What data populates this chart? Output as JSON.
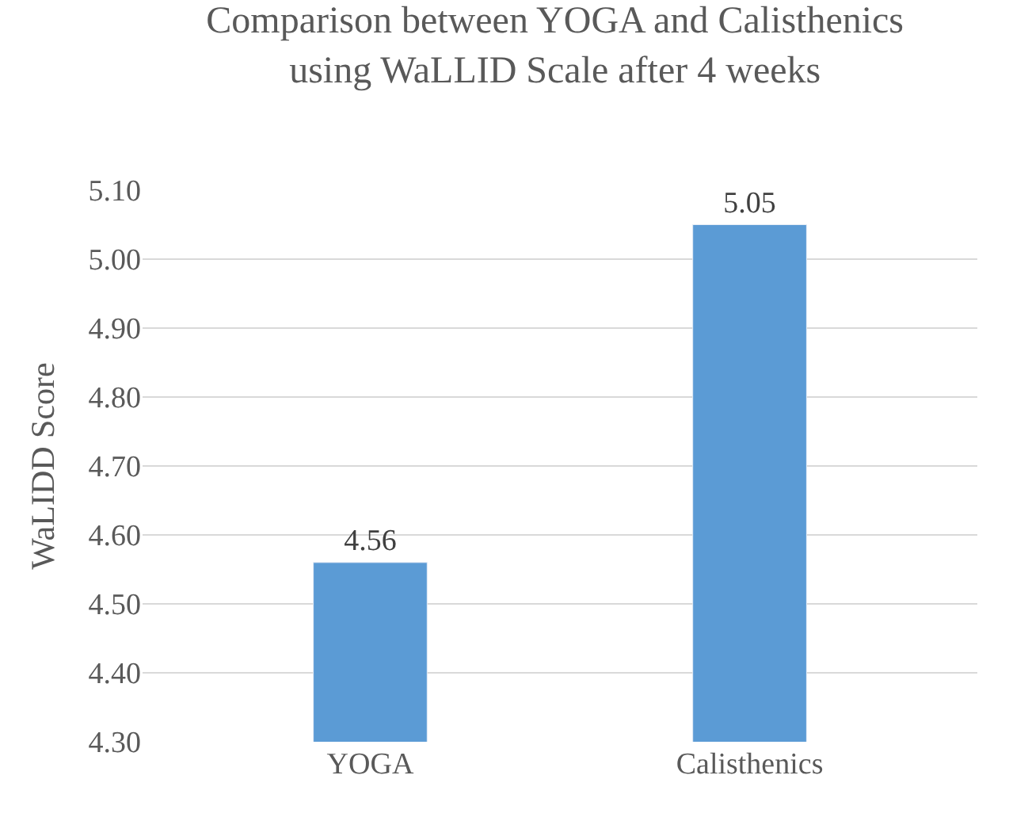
{
  "chart_data": {
    "type": "bar",
    "title": "Comparison between YOGA and Calisthenics\nusing WaLLID Scale after 4 weeks",
    "ylabel": "WaLIDD Score",
    "categories": [
      "YOGA",
      "Calisthenics"
    ],
    "values": [
      4.56,
      5.05
    ],
    "value_labels": [
      "4.56",
      "5.05"
    ],
    "color": "#5b9bd5",
    "ylim": [
      4.3,
      5.1
    ],
    "yticks": [
      {
        "value": 4.3,
        "label": "4.30"
      },
      {
        "value": 4.4,
        "label": "4.40"
      },
      {
        "value": 4.5,
        "label": "4.50"
      },
      {
        "value": 4.6,
        "label": "4.60"
      },
      {
        "value": 4.7,
        "label": "4.70"
      },
      {
        "value": 4.8,
        "label": "4.80"
      },
      {
        "value": 4.9,
        "label": "4.90"
      },
      {
        "value": 5.0,
        "label": "5.00"
      },
      {
        "value": 5.1,
        "label": "5.10"
      }
    ],
    "grid": "y"
  }
}
